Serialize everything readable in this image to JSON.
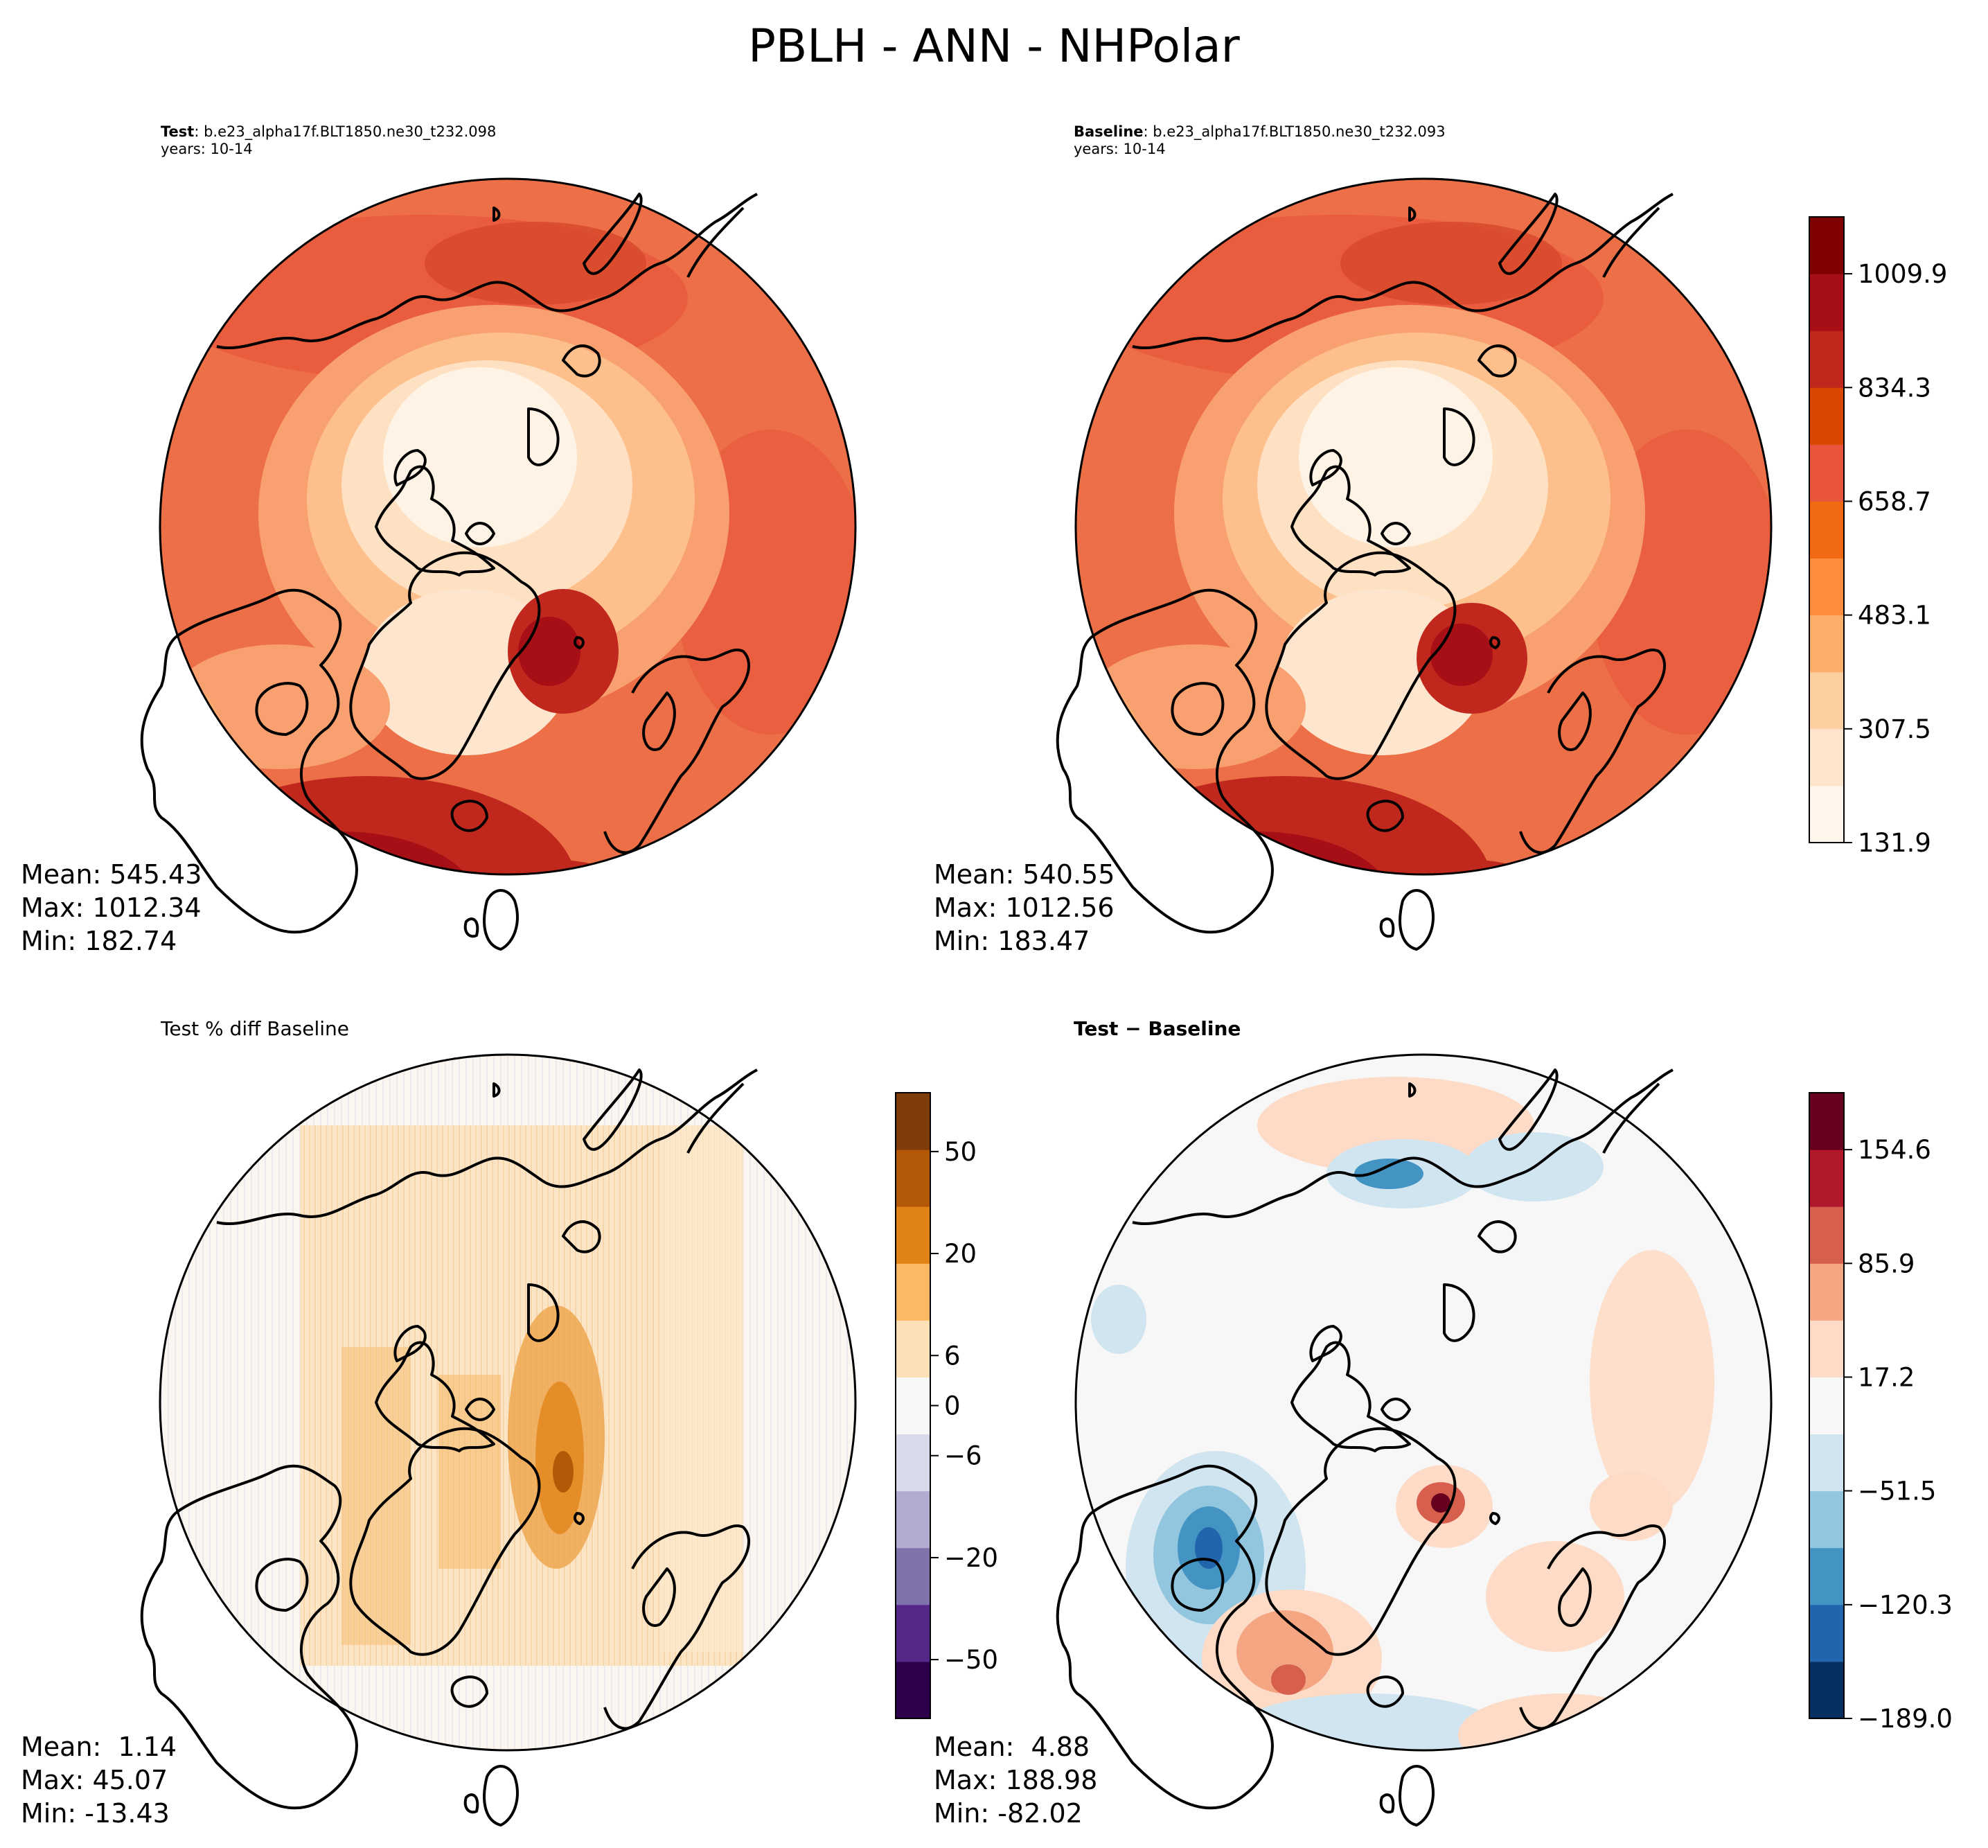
{
  "suptitle": "PBLH - ANN - NHPolar",
  "panels": {
    "test": {
      "label": "Test",
      "case": ": b.e23_alpha17f.BLT1850.ne30_t232.098",
      "years": "years: 10-14",
      "mean": "Mean: 545.43",
      "max": "Max: 1012.34",
      "min": "Min: 182.74"
    },
    "baseline": {
      "label": "Baseline",
      "case": ": b.e23_alpha17f.BLT1850.ne30_t232.093",
      "years": "years: 10-14",
      "mean": "Mean: 540.55",
      "max": "Max: 1012.56",
      "min": "Min: 183.47"
    },
    "pctdiff": {
      "title": "Test % diff Baseline",
      "mean": "Mean:  1.14",
      "max": "Max: 45.07",
      "min": "Min: -13.43"
    },
    "diff": {
      "title": "Test − Baseline",
      "mean": "Mean:  4.88",
      "max": "Max: 188.98",
      "min": "Min: -82.02"
    }
  },
  "colors": {
    "reds": [
      "#fff5eb",
      "#fee6ce",
      "#fdd0a2",
      "#fdae6b",
      "#fd8d3c",
      "#f16913",
      "#e8553a",
      "#d94801",
      "#c0281d",
      "#a50f15",
      "#7f0000"
    ],
    "puor": [
      "#2d004b",
      "#542788",
      "#8073ac",
      "#b2abd2",
      "#d8daeb",
      "#f7f7f7",
      "#fee0b6",
      "#fdb863",
      "#e08214",
      "#b35806",
      "#7f3b08"
    ],
    "rdbu": [
      "#053061",
      "#2166ac",
      "#4393c3",
      "#92c5de",
      "#d1e5f0",
      "#f7f7f7",
      "#fddbc7",
      "#f4a582",
      "#d6604d",
      "#b2182b",
      "#67001f"
    ]
  },
  "chart_data": [
    {
      "type": "heatmap",
      "name": "test",
      "title": "Test : b.e23_alpha17f.BLT1850.ne30_t232.098",
      "colorbar_shared_with": "baseline",
      "mean": 545.43,
      "max": 1012.34,
      "min": 182.74
    },
    {
      "type": "heatmap",
      "name": "baseline",
      "title": "Baseline : b.e23_alpha17f.BLT1850.ne30_t232.093",
      "colorbar": {
        "ticks": [
          131.9,
          307.5,
          483.1,
          658.7,
          834.3,
          1009.9
        ],
        "tick_labels": [
          "131.9",
          "307.5",
          "483.1",
          "658.7",
          "834.3",
          "1009.9"
        ],
        "range": [
          131.9,
          1097.7
        ],
        "levels": 11
      },
      "mean": 540.55,
      "max": 1012.56,
      "min": 183.47
    },
    {
      "type": "heatmap",
      "name": "pctdiff",
      "title": "Test % diff Baseline",
      "colorbar": {
        "ticks": [
          -50,
          -20,
          -6,
          0,
          6,
          20,
          50
        ],
        "tick_labels": [
          "−50",
          "−20",
          "−6",
          "0",
          "6",
          "20",
          "50"
        ]
      },
      "mean": 1.14,
      "max": 45.07,
      "min": -13.43
    },
    {
      "type": "heatmap",
      "name": "diff",
      "title": "Test − Baseline",
      "colorbar": {
        "ticks": [
          -189.0,
          -120.3,
          -51.5,
          17.2,
          85.9,
          154.6
        ],
        "tick_labels": [
          "−189.0",
          "−120.3",
          "−51.5",
          "17.2",
          "85.9",
          "154.6"
        ],
        "range": [
          -189.0,
          189.0
        ]
      },
      "mean": 4.88,
      "max": 188.98,
      "min": -82.02
    }
  ]
}
